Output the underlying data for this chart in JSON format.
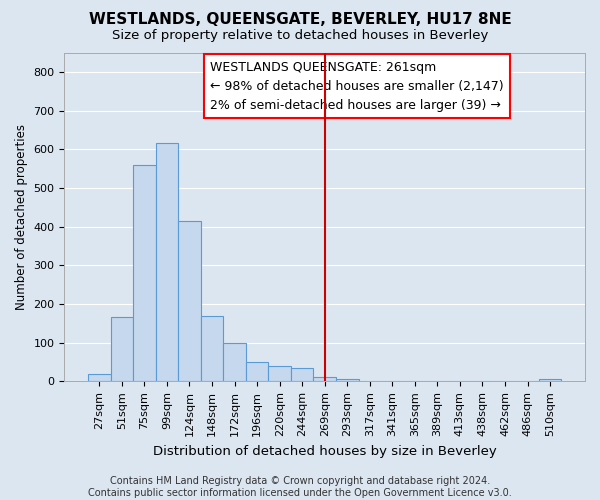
{
  "title": "WESTLANDS, QUEENSGATE, BEVERLEY, HU17 8NE",
  "subtitle": "Size of property relative to detached houses in Beverley",
  "xlabel": "Distribution of detached houses by size in Beverley",
  "ylabel": "Number of detached properties",
  "categories": [
    "27sqm",
    "51sqm",
    "75sqm",
    "99sqm",
    "124sqm",
    "148sqm",
    "172sqm",
    "196sqm",
    "220sqm",
    "244sqm",
    "269sqm",
    "293sqm",
    "317sqm",
    "341sqm",
    "365sqm",
    "389sqm",
    "413sqm",
    "438sqm",
    "462sqm",
    "486sqm",
    "510sqm"
  ],
  "values": [
    20,
    165,
    560,
    615,
    415,
    170,
    100,
    50,
    40,
    35,
    10,
    5,
    0,
    0,
    0,
    0,
    0,
    0,
    0,
    0,
    5
  ],
  "bar_color": "#c5d8ed",
  "bar_edge_color": "#5b9bd5",
  "background_color": "#dce6f1",
  "grid_color": "#ffffff",
  "vline_index": 10,
  "vline_color": "#cc0000",
  "annotation_box_text": "WESTLANDS QUEENSGATE: 261sqm\n← 98% of detached houses are smaller (2,147)\n2% of semi-detached houses are larger (39) →",
  "annotation_fontsize": 9,
  "title_fontsize": 11,
  "subtitle_fontsize": 9.5,
  "xlabel_fontsize": 9.5,
  "ylabel_fontsize": 8.5,
  "tick_fontsize": 8,
  "footer_text": "Contains HM Land Registry data © Crown copyright and database right 2024.\nContains public sector information licensed under the Open Government Licence v3.0.",
  "ylim": [
    0,
    850
  ],
  "yticks": [
    0,
    100,
    200,
    300,
    400,
    500,
    600,
    700,
    800
  ]
}
